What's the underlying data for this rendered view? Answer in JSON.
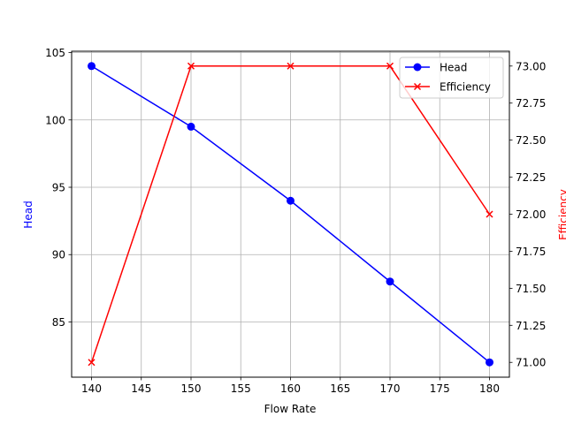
{
  "chart_data": {
    "type": "line",
    "title": "",
    "xlabel": "Flow Rate",
    "x": [
      140,
      150,
      160,
      170,
      180
    ],
    "xlim": [
      138,
      182
    ],
    "xticks": [
      140,
      145,
      150,
      155,
      160,
      165,
      170,
      175,
      180
    ],
    "grid": true,
    "legend_position": "upper right",
    "series": [
      {
        "name": "Head",
        "axis": "left",
        "color": "#0000ff",
        "marker": "circle",
        "values": [
          104,
          99.5,
          94,
          88,
          82
        ]
      },
      {
        "name": "Efficiency",
        "axis": "right",
        "color": "#ff0000",
        "marker": "x",
        "values": [
          71.0,
          73.0,
          73.0,
          73.0,
          72.0
        ]
      }
    ],
    "left_axis": {
      "label": "Head",
      "label_color": "#0000ff",
      "ylim": [
        80.9,
        105.1
      ],
      "ticks": [
        85,
        90,
        95,
        100,
        105
      ]
    },
    "right_axis": {
      "label": "Efficiency",
      "label_color": "#ff0000",
      "ylim": [
        70.9,
        73.1
      ],
      "ticks": [
        "71.00",
        "71.25",
        "71.50",
        "71.75",
        "72.00",
        "72.25",
        "72.50",
        "72.75",
        "73.00"
      ]
    }
  }
}
